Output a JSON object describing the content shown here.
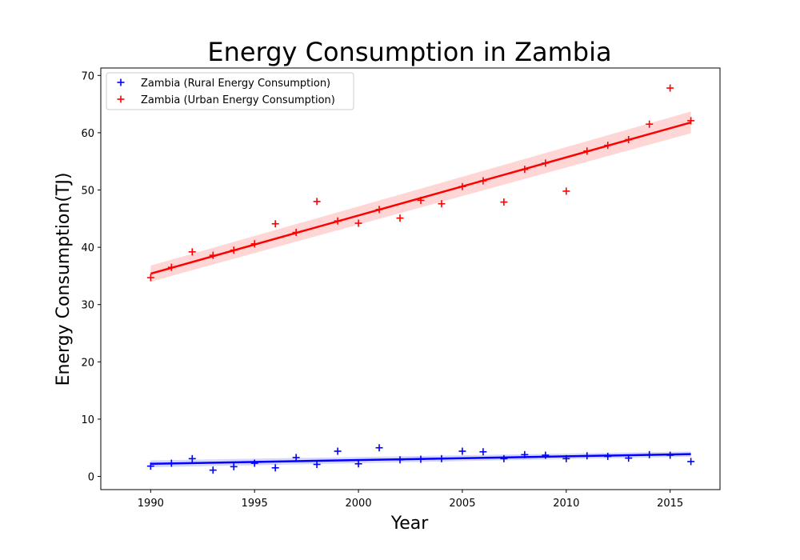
{
  "chart_data": {
    "type": "scatter",
    "title": "Energy Consumption in Zambia",
    "xlabel": "Year",
    "ylabel": "Energy Consumption(TJ)",
    "xlim": [
      1987.6,
      2017.4
    ],
    "ylim": [
      -2.3,
      71.3
    ],
    "xticks": [
      1990,
      1995,
      2000,
      2005,
      2010,
      2015
    ],
    "yticks": [
      0,
      10,
      20,
      30,
      40,
      50,
      60,
      70
    ],
    "grid": false,
    "legend_position": "top-left",
    "series": [
      {
        "name": "Zambia (Rural Energy Consumption)",
        "color": "#0000ff",
        "marker": "plus",
        "x": [
          1990,
          1991,
          1992,
          1993,
          1994,
          1995,
          1996,
          1997,
          1998,
          1999,
          2000,
          2001,
          2002,
          2003,
          2004,
          2005,
          2006,
          2007,
          2008,
          2009,
          2010,
          2011,
          2012,
          2013,
          2014,
          2015,
          2016
        ],
        "y": [
          1.8,
          2.3,
          3.1,
          1.1,
          1.7,
          2.3,
          1.5,
          3.3,
          2.1,
          4.4,
          2.2,
          5.0,
          2.9,
          3.0,
          3.1,
          4.4,
          4.3,
          3.1,
          3.8,
          3.7,
          3.1,
          3.6,
          3.5,
          3.2,
          3.8,
          3.7,
          2.6
        ],
        "trend": {
          "x": [
            1990,
            2016
          ],
          "y": [
            2.2,
            3.9
          ],
          "ci_halfwidth": [
            0.6,
            0.45
          ]
        }
      },
      {
        "name": "Zambia (Urban Energy Consumption)",
        "color": "#ff0000",
        "marker": "plus",
        "x": [
          1990,
          1991,
          1992,
          1993,
          1994,
          1995,
          1996,
          1997,
          1998,
          1999,
          2000,
          2001,
          2002,
          2003,
          2004,
          2005,
          2006,
          2007,
          2008,
          2009,
          2010,
          2011,
          2012,
          2013,
          2014,
          2015,
          2016
        ],
        "y": [
          34.7,
          36.5,
          39.2,
          38.6,
          39.5,
          40.6,
          44.1,
          42.6,
          48.0,
          44.6,
          44.2,
          46.6,
          45.1,
          48.2,
          47.6,
          50.6,
          51.6,
          47.9,
          53.6,
          54.7,
          49.8,
          56.8,
          57.8,
          58.8,
          61.5,
          67.8,
          62.1
        ],
        "trend": {
          "x": [
            1990,
            2016
          ],
          "y": [
            35.4,
            61.8
          ],
          "ci_halfwidth": [
            1.4,
            1.9
          ]
        }
      }
    ]
  }
}
